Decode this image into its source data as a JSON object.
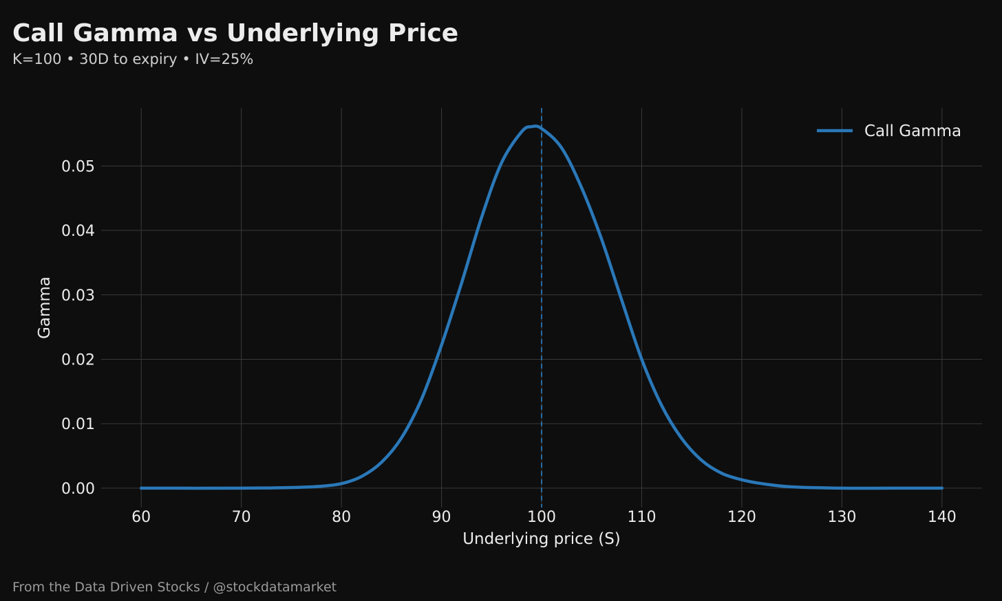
{
  "header": {
    "title": "Call Gamma vs Underlying Price",
    "subtitle": "K=100 • 30D to expiry • IV=25%"
  },
  "footer": {
    "credit": "From the Data Driven Stocks / @stockdatamarket"
  },
  "colors": {
    "background": "#0e0e0f",
    "series": "#2a78b8",
    "grid": "#3a3a3a",
    "text": "#ececec"
  },
  "chart_data": {
    "type": "line",
    "title": "Call Gamma vs Underlying Price",
    "subtitle": "K=100 • 30D to expiry • IV=25%",
    "xlabel": "Underlying price (S)",
    "ylabel": "Gamma",
    "xlim": [
      56,
      144
    ],
    "ylim": [
      -0.003,
      0.059
    ],
    "xticks": [
      60,
      70,
      80,
      90,
      100,
      110,
      120,
      130,
      140
    ],
    "xtick_labels": [
      "60",
      "70",
      "80",
      "90",
      "100",
      "110",
      "120",
      "130",
      "140"
    ],
    "yticks": [
      0.0,
      0.01,
      0.02,
      0.03,
      0.04,
      0.05
    ],
    "ytick_labels": [
      "0.00",
      "0.01",
      "0.02",
      "0.03",
      "0.04",
      "0.05"
    ],
    "grid": true,
    "legend": {
      "position": "top-right"
    },
    "reference_line": {
      "x": 100,
      "style": "dashed"
    },
    "series": [
      {
        "name": "Call Gamma",
        "x": [
          60,
          70,
          75,
          78,
          80,
          82,
          84,
          86,
          88,
          90,
          92,
          94,
          96,
          98,
          99,
          100,
          102,
          104,
          106,
          108,
          110,
          112,
          114,
          116,
          118,
          120,
          122,
          125,
          130,
          135,
          140
        ],
        "values": [
          0.0,
          0.0,
          0.0001,
          0.0003,
          0.0007,
          0.0018,
          0.004,
          0.0078,
          0.0138,
          0.0222,
          0.0318,
          0.042,
          0.0505,
          0.0553,
          0.0561,
          0.0558,
          0.0528,
          0.0466,
          0.0386,
          0.0292,
          0.02,
          0.0128,
          0.0077,
          0.0043,
          0.0023,
          0.0013,
          0.0007,
          0.0002,
          0.0,
          0.0,
          0.0
        ]
      }
    ]
  }
}
